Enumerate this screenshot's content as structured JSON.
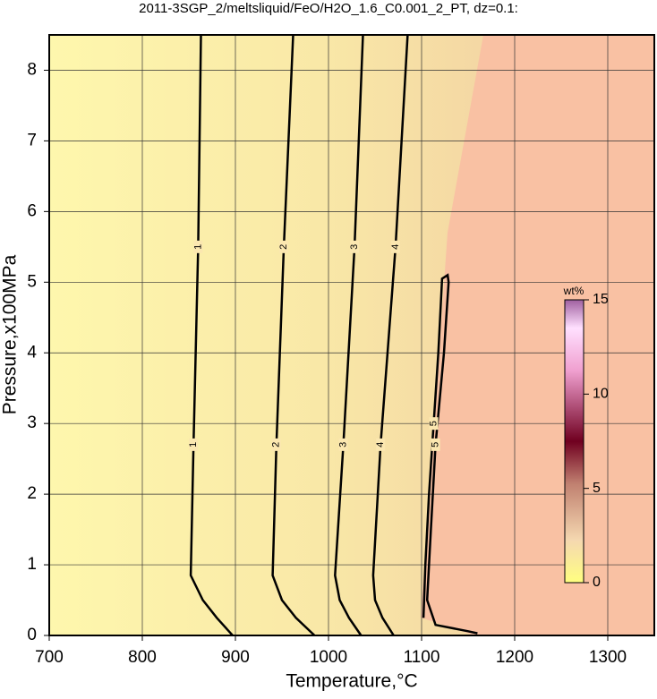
{
  "chart_data": {
    "type": "contour",
    "title": "2011-3SGP_2/meltsliquid/FeO/H2O_1.6_C0.001_2_PT, dz=0.1:",
    "x_label": "Temperature,°C",
    "y_label": "Pressure,x100MPa",
    "xlim": [
      700,
      1350
    ],
    "ylim": [
      0,
      8.5
    ],
    "xticks": [
      700,
      800,
      900,
      1000,
      1100,
      1200,
      1300
    ],
    "yticks": [
      0,
      1,
      2,
      3,
      4,
      5,
      6,
      7,
      8
    ],
    "grid": true,
    "series": [
      {
        "level": 1,
        "color": "#000000",
        "x": [
          863,
          860,
          855,
          852,
          865,
          880,
          897
        ],
        "y": [
          8.5,
          5.5,
          2.7,
          0.85,
          0.5,
          0.25,
          0
        ]
      },
      {
        "level": 2,
        "color": "#000000",
        "x": [
          962,
          952,
          944,
          940,
          950,
          965,
          985
        ],
        "y": [
          8.5,
          5.5,
          2.7,
          0.85,
          0.5,
          0.25,
          0
        ]
      },
      {
        "level": 3,
        "color": "#000000",
        "x": [
          1037,
          1028,
          1016,
          1007,
          1012,
          1022,
          1035
        ],
        "y": [
          8.5,
          5.5,
          2.7,
          0.85,
          0.5,
          0.25,
          0
        ]
      },
      {
        "level": 4,
        "color": "#000000",
        "x": [
          1085,
          1072,
          1056,
          1048,
          1050,
          1058,
          1070
        ],
        "y": [
          8.5,
          5.5,
          2.7,
          0.85,
          0.5,
          0.25,
          0
        ]
      },
      {
        "level": 5,
        "color": "#000000",
        "x": [
          1102,
          1104,
          1108,
          1113,
          1118,
          1122,
          1128,
          1129,
          1124,
          1115,
          1110,
          1106,
          1115,
          1150,
          1160
        ],
        "y": [
          0.25,
          1.0,
          2.0,
          3.0,
          4.0,
          5.05,
          5.1,
          5.0,
          4.0,
          2.7,
          1.5,
          0.5,
          0.15,
          0.06,
          0.03
        ]
      }
    ],
    "colorbar": {
      "label": "wt%",
      "lim": [
        0,
        15
      ],
      "ticks": [
        0,
        5,
        10,
        15
      ]
    }
  }
}
